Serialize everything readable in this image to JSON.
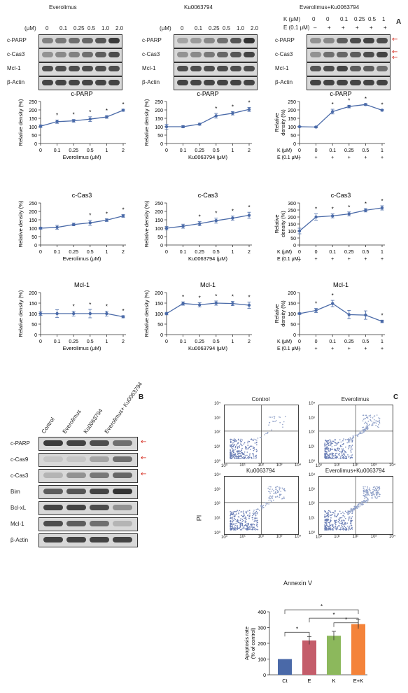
{
  "panel_letters": {
    "A": "A",
    "B": "B",
    "C": "C"
  },
  "panelA": {
    "blots": [
      {
        "title": "Everolimus",
        "unit": "(μM)",
        "lanes": [
          "0",
          "0.1",
          "0.25",
          "0.5",
          "1.0",
          "2.0"
        ],
        "rows": [
          "c-PARP",
          "c-Cas3",
          "Mcl-1",
          "β-Actin"
        ]
      },
      {
        "title": "Ku0063794",
        "unit": "(μM)",
        "lanes": [
          "0",
          "0.1",
          "0.25",
          "0.5",
          "1.0",
          "2.0"
        ],
        "rows": [
          "c-PARP",
          "c-Cas3",
          "Mcl-1",
          "β-Actin"
        ]
      },
      {
        "title": "Everolimus+Ku0063794",
        "k_label": "K (μM)",
        "e_label": "E (0.1 μM)",
        "k_lanes": [
          "0",
          "0",
          "0.1",
          "0.25",
          "0.5",
          "1"
        ],
        "e_lanes": [
          "–",
          "+",
          "+",
          "+",
          "+",
          "+"
        ],
        "rows": [
          "c-PARP",
          "c-Cas3",
          "Mcl-1",
          "β-Actin"
        ]
      }
    ],
    "x_ticks_dose": [
      "0",
      "0.1",
      "0.25",
      "0.5",
      "1",
      "2"
    ],
    "x_label_E": "Everolimus (μM)",
    "x_label_K": "Ku0063794 (μM)",
    "combo_k_label": "K (μM)",
    "combo_e_label": "E (0.1 μM)",
    "combo_k_ticks": [
      "0",
      "0",
      "0.1",
      "0.25",
      "0.5",
      "1"
    ],
    "combo_e_ticks": [
      "–",
      "+",
      "+",
      "+",
      "+",
      "+"
    ],
    "ylabel": "Relative density (%)",
    "ylabel_combo": [
      "Relative",
      "density (%)"
    ]
  },
  "chart_data": [
    {
      "id": "parp_e",
      "type": "line",
      "title": "c-PARP",
      "ylim": [
        0,
        250
      ],
      "yticks": [
        0,
        50,
        100,
        150,
        200,
        250
      ],
      "values": [
        103,
        130,
        135,
        145,
        158,
        198
      ],
      "err": [
        8,
        10,
        8,
        14,
        8,
        6
      ],
      "stars": [
        0,
        1,
        1,
        1,
        1,
        1
      ]
    },
    {
      "id": "parp_k",
      "type": "line",
      "title": "c-PARP",
      "ylim": [
        0,
        250
      ],
      "yticks": [
        0,
        50,
        100,
        150,
        200,
        250
      ],
      "values": [
        100,
        100,
        115,
        165,
        180,
        203
      ],
      "err": [
        15,
        6,
        6,
        14,
        10,
        12
      ],
      "stars": [
        0,
        0,
        0,
        1,
        1,
        1
      ]
    },
    {
      "id": "parp_c",
      "type": "line",
      "title": "c-PARP",
      "ylim": [
        0,
        250
      ],
      "yticks": [
        0,
        50,
        100,
        150,
        200,
        250
      ],
      "values": [
        100,
        98,
        190,
        220,
        232,
        198
      ],
      "err": [
        3,
        5,
        14,
        8,
        6,
        5
      ],
      "stars": [
        0,
        0,
        1,
        1,
        1,
        1
      ]
    },
    {
      "id": "cas3_e",
      "type": "line",
      "title": "c-Cas3",
      "ylim": [
        0,
        250
      ],
      "yticks": [
        0,
        50,
        100,
        150,
        200,
        250
      ],
      "values": [
        100,
        105,
        122,
        132,
        148,
        173
      ],
      "err": [
        6,
        12,
        8,
        15,
        8,
        8
      ],
      "stars": [
        0,
        0,
        0,
        1,
        1,
        1
      ]
    },
    {
      "id": "cas3_k",
      "type": "line",
      "title": "c-Cas3",
      "ylim": [
        0,
        250
      ],
      "yticks": [
        0,
        50,
        100,
        150,
        200,
        250
      ],
      "values": [
        100,
        112,
        127,
        145,
        160,
        177
      ],
      "err": [
        10,
        12,
        12,
        15,
        12,
        18
      ],
      "stars": [
        0,
        0,
        1,
        1,
        1,
        1
      ]
    },
    {
      "id": "cas3_c",
      "type": "line",
      "title": "c-Cas3",
      "ylim": [
        0,
        300
      ],
      "yticks": [
        0,
        50,
        100,
        150,
        200,
        250,
        300
      ],
      "values": [
        100,
        200,
        208,
        222,
        248,
        265
      ],
      "err": [
        20,
        22,
        14,
        14,
        12,
        15
      ],
      "stars": [
        0,
        1,
        1,
        1,
        1,
        1
      ]
    },
    {
      "id": "mcl_e",
      "type": "line",
      "title": "Mcl-1",
      "ylim": [
        0,
        200
      ],
      "yticks": [
        0,
        50,
        100,
        150,
        200
      ],
      "values": [
        100,
        100,
        100,
        100,
        100,
        85
      ],
      "err": [
        8,
        18,
        12,
        20,
        12,
        5
      ],
      "stars": [
        0,
        0,
        1,
        1,
        1,
        1
      ]
    },
    {
      "id": "mcl_k",
      "type": "line",
      "title": "Mcl-1",
      "ylim": [
        0,
        200
      ],
      "yticks": [
        0,
        50,
        100,
        150,
        200
      ],
      "values": [
        100,
        148,
        142,
        150,
        148,
        140
      ],
      "err": [
        6,
        8,
        10,
        10,
        10,
        15
      ],
      "stars": [
        0,
        1,
        1,
        1,
        1,
        1
      ]
    },
    {
      "id": "mcl_c",
      "type": "line",
      "title": "Mcl-1",
      "ylim": [
        0,
        200
      ],
      "yticks": [
        0,
        50,
        100,
        150,
        200
      ],
      "values": [
        100,
        115,
        148,
        95,
        93,
        63
      ],
      "err": [
        4,
        10,
        15,
        20,
        20,
        6
      ],
      "stars": [
        0,
        1,
        1,
        0,
        0,
        1
      ]
    },
    {
      "id": "apoptosis",
      "type": "bar",
      "categories": [
        "Ct",
        "E",
        "K",
        "E+K"
      ],
      "values": [
        100,
        218,
        248,
        322
      ],
      "err": [
        0,
        25,
        28,
        30
      ],
      "colors": [
        "#4a69a8",
        "#c45d6a",
        "#8cb85c",
        "#f4833a"
      ],
      "ylim": [
        0,
        400
      ],
      "yticks": [
        0,
        100,
        200,
        300,
        400
      ],
      "ylabel": [
        "Apoptosis rate",
        "(% of control)"
      ],
      "star": "*"
    }
  ],
  "panelB": {
    "lanes": [
      "Control",
      "Everolimus",
      "Ku0063794",
      "Everolimus+ Ku0063794"
    ],
    "rows": [
      "c-PARP",
      "c-Cas9",
      "c-Cas3",
      "Bim",
      "Bcl-xL",
      "Mcl-1",
      "β-Actin"
    ]
  },
  "panelC": {
    "plots": [
      "Control",
      "Everolimus",
      "Ku0063794",
      "Everolimus+Ku0063794"
    ],
    "yaxis": "PI",
    "xaxis": "Annexin V",
    "ticks": [
      "10⁰",
      "10¹",
      "10²",
      "10³",
      "10⁴"
    ]
  }
}
